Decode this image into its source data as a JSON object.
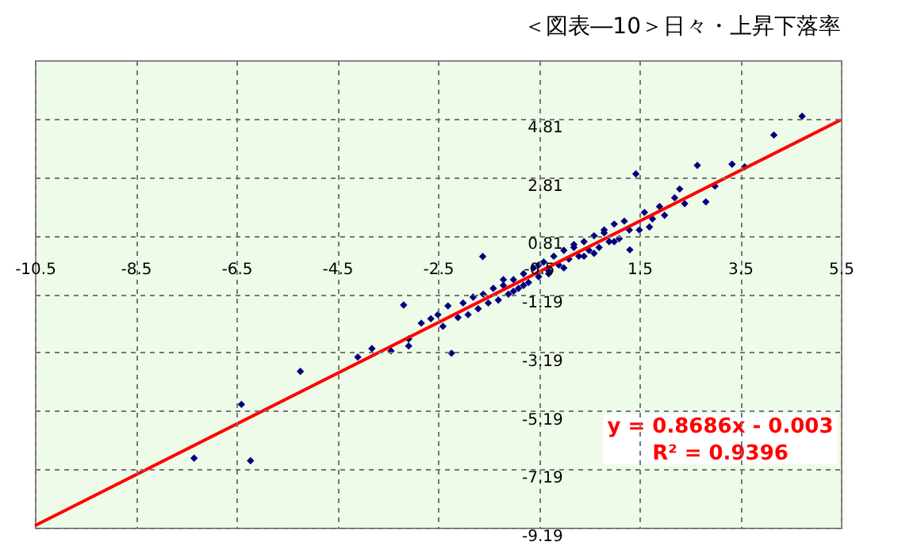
{
  "chart_data": {
    "type": "scatter",
    "title": "＜図表―10＞日々・上昇下落率",
    "xlim": [
      -10.5,
      5.5
    ],
    "xticks": [
      -10.5,
      -8.5,
      -6.5,
      -4.5,
      -2.5,
      -0.5,
      1.5,
      3.5,
      5.5
    ],
    "ylim": [
      -9.19,
      6.81
    ],
    "yticks": [
      -9.19,
      -7.19,
      -5.19,
      -3.19,
      -1.19,
      0.81,
      2.81,
      4.81
    ],
    "grid": true,
    "marker": "diamond",
    "annotations": [
      "y = 0.8686x - 0.003",
      "R² = 0.9396"
    ],
    "series": [
      {
        "color": "#000080",
        "x": [
          -7.34,
          -6.4,
          -6.22,
          -5.23,
          -4.09,
          -3.81,
          -3.43,
          -3.08,
          -3.08,
          -3.18,
          -2.83,
          -2.64,
          -2.23,
          -2.5,
          -2.4,
          -2.3,
          -2.1,
          -2.0,
          -1.9,
          -1.8,
          -1.7,
          -1.6,
          -1.61,
          -1.5,
          -1.4,
          -1.3,
          -1.2,
          -1.1,
          -1.0,
          -0.9,
          -0.8,
          -0.7,
          -0.6,
          -0.5,
          -0.4,
          -0.3,
          -0.2,
          -0.1,
          0.0,
          0.1,
          0.2,
          0.3,
          0.4,
          0.5,
          0.6,
          0.7,
          0.8,
          0.9,
          1.0,
          1.1,
          1.2,
          1.31,
          1.43,
          1.5,
          1.6,
          1.76,
          1.9,
          2.0,
          2.2,
          2.4,
          2.65,
          2.82,
          3.0,
          3.34,
          3.59,
          4.17,
          4.73,
          -1.2,
          -0.8,
          -0.3,
          0.2,
          0.6,
          1.0,
          -1.0,
          -0.5,
          0.0,
          0.4,
          0.8,
          1.3,
          1.7,
          2.3
        ],
        "values": [
          -6.81,
          -4.97,
          -6.9,
          -3.84,
          -3.35,
          -3.06,
          -3.14,
          -2.97,
          -2.73,
          -1.57,
          -2.19,
          -2.04,
          -3.22,
          -1.9,
          -2.3,
          -1.6,
          -2.0,
          -1.5,
          -1.9,
          -1.3,
          -1.7,
          -1.2,
          0.09,
          -1.5,
          -1.0,
          -1.4,
          -0.9,
          -1.2,
          -0.7,
          -1.0,
          -0.5,
          -0.8,
          -0.3,
          -0.6,
          -0.1,
          -0.4,
          0.1,
          -0.2,
          0.3,
          0.0,
          0.4,
          0.1,
          0.6,
          0.3,
          0.8,
          0.4,
          1.0,
          0.6,
          1.2,
          0.7,
          1.3,
          0.32,
          2.92,
          1.0,
          1.6,
          1.38,
          1.8,
          1.5,
          2.1,
          1.9,
          3.21,
          1.96,
          2.5,
          3.25,
          3.16,
          4.25,
          4.89,
          -0.7,
          -0.9,
          -0.5,
          0.5,
          0.2,
          0.6,
          -1.1,
          -0.2,
          -0.3,
          0.1,
          0.9,
          1.0,
          1.1,
          2.4
        ]
      },
      {
        "type": "line",
        "marker": "none",
        "color": "#ff0000",
        "x": [
          -10.5,
          5.5
        ],
        "values": [
          -9.12,
          4.77
        ]
      }
    ]
  }
}
